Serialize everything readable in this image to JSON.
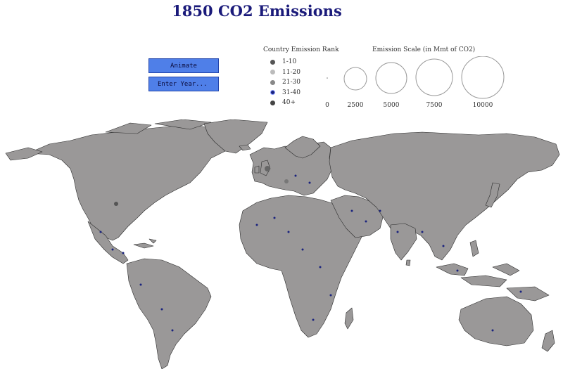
{
  "title": "1850 CO2 Emissions",
  "buttons": {
    "animate": "Animate",
    "enter_year": "Enter Year..."
  },
  "rank_legend": {
    "title": "Country Emission Rank",
    "items": [
      {
        "label": "1-10",
        "color": "#555555"
      },
      {
        "label": "11-20",
        "color": "#bbbbbb"
      },
      {
        "label": "21-30",
        "color": "#888888"
      },
      {
        "label": "31-40",
        "color": "#1a237e"
      },
      {
        "label": "40+",
        "color": "#444444"
      }
    ]
  },
  "emission_scale": {
    "title": "Emission Scale (in Mmt of CO2)",
    "values": [
      "0",
      "2500",
      "5000",
      "7500",
      "10000"
    ]
  },
  "colors": {
    "land": "#9a9898",
    "border": "#2b2b2b",
    "title": "#1a1a7a",
    "button": "#4f7fe8",
    "dot": "#1a237e"
  }
}
